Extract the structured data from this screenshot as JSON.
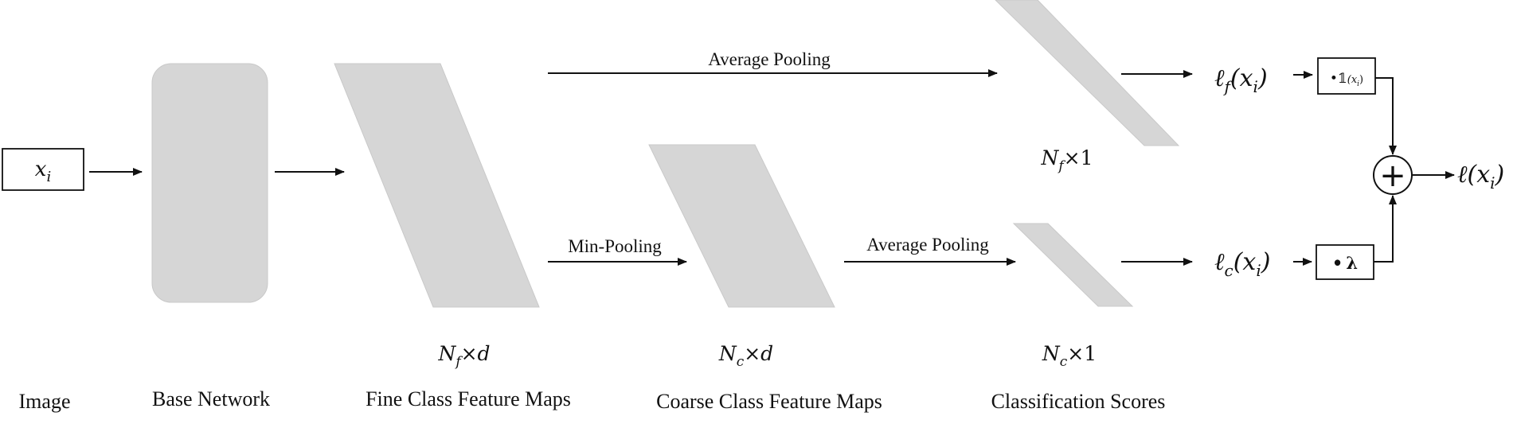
{
  "input": {
    "symbol": "x",
    "subscript": "i"
  },
  "edge_labels": {
    "avg_pool_top": "Average Pooling",
    "min_pool": "Min-Pooling",
    "avg_pool_bottom": "Average Pooling"
  },
  "dims": {
    "fine_maps": {
      "base": "N",
      "sub": "f",
      "rest": "×d"
    },
    "coarse_maps": {
      "base": "N",
      "sub": "c",
      "rest": "×d"
    },
    "fine_scores": {
      "base": "N",
      "sub": "f",
      "rest": "×1"
    },
    "coarse_scores": {
      "base": "N",
      "sub": "c",
      "rest": "×1"
    }
  },
  "losses": {
    "fine": {
      "ell": "ℓ",
      "sub": "f",
      "arg": "(x",
      "argsub": "i",
      "close": ")"
    },
    "coarse": {
      "ell": "ℓ",
      "sub": "c",
      "arg": "(x",
      "argsub": "i",
      "close": ")"
    },
    "total": {
      "ell": "ℓ",
      "arg": "(x",
      "argsub": "i",
      "close": ")"
    }
  },
  "multipliers": {
    "fine": {
      "dot": "•",
      "indicator": "𝟙",
      "arg": "(x",
      "argsub": "i",
      "close": ")"
    },
    "coarse": {
      "dot": "•",
      "lambda": "λ"
    }
  },
  "sum_symbol": "+",
  "captions": {
    "image": "Image",
    "base_network": "Base Network",
    "fine_maps": "Fine Class Feature Maps",
    "coarse_maps": "Coarse Class Feature Maps",
    "scores": "Classification Scores"
  }
}
